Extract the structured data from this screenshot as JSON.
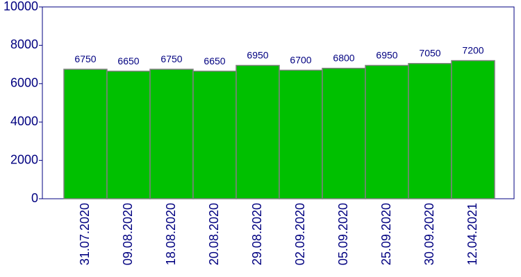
{
  "chart_data": {
    "type": "bar",
    "categories": [
      "31.07.2020",
      "09.08.2020",
      "18.08.2020",
      "20.08.2020",
      "29.08.2020",
      "02.09.2020",
      "05.09.2020",
      "25.09.2020",
      "30.09.2020",
      "12.04.2021"
    ],
    "values": [
      6750,
      6650,
      6750,
      6650,
      6950,
      6700,
      6800,
      6950,
      7050,
      7200
    ],
    "color": "#00c000",
    "ylim": [
      0,
      10000
    ],
    "yticks": [
      0,
      2000,
      4000,
      6000,
      8000,
      10000
    ],
    "data_labels": true
  }
}
